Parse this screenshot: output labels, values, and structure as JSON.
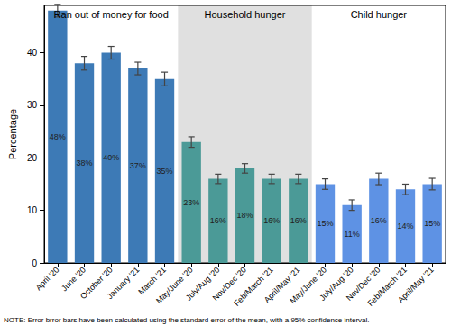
{
  "chart_data": {
    "type": "bar",
    "y_label": "Percentage",
    "categories": [
      "April '20",
      "June '20",
      "October '20",
      "January '21",
      "March '21",
      "May/June '20",
      "July/Aug '20",
      "Nov/Dec '20",
      "Feb/March '21",
      "April/May '21",
      "May/June '20",
      "July/Aug '20",
      "Nov/Dec '20",
      "Feb/March '21",
      "April/May '21"
    ],
    "series": [
      {
        "name": "Ran out of money for food",
        "color": "#3d7ab6",
        "values": [
          48,
          38,
          40,
          37,
          35,
          null,
          null,
          null,
          null,
          null,
          null,
          null,
          null,
          null,
          null
        ],
        "value_labels": [
          "48%",
          "38%",
          "40%",
          "37%",
          "35%",
          null,
          null,
          null,
          null,
          null,
          null,
          null,
          null,
          null,
          null
        ],
        "errors": [
          1.2,
          1.3,
          1.2,
          1.2,
          1.3,
          null,
          null,
          null,
          null,
          null,
          null,
          null,
          null,
          null,
          null
        ]
      },
      {
        "name": "Household hunger",
        "color": "#4b9a97",
        "values": [
          null,
          null,
          null,
          null,
          null,
          23,
          16,
          18,
          16,
          16,
          null,
          null,
          null,
          null,
          null
        ],
        "value_labels": [
          null,
          null,
          null,
          null,
          null,
          "23%",
          "16%",
          "18%",
          "16%",
          "16%",
          null,
          null,
          null,
          null,
          null
        ],
        "errors": [
          null,
          null,
          null,
          null,
          null,
          1.0,
          0.9,
          0.9,
          0.9,
          0.9,
          null,
          null,
          null,
          null,
          null
        ]
      },
      {
        "name": "Child hunger",
        "color": "#5e92e4",
        "values": [
          null,
          null,
          null,
          null,
          null,
          null,
          null,
          null,
          null,
          null,
          15,
          11,
          16,
          14,
          15
        ],
        "value_labels": [
          null,
          null,
          null,
          null,
          null,
          null,
          null,
          null,
          null,
          null,
          "15%",
          "11%",
          "16%",
          "14%",
          "15%"
        ],
        "errors": [
          null,
          null,
          null,
          null,
          null,
          null,
          null,
          null,
          null,
          null,
          1.0,
          1.0,
          1.1,
          1.0,
          1.1
        ]
      }
    ],
    "ylim": [
      0,
      49
    ],
    "yticks": [
      0,
      10,
      20,
      30,
      40
    ],
    "grid": false,
    "data_labels": true,
    "note": "NOTE: Error brror bars have been calculated using the standard error of the mean, with a 95% confidence interval."
  }
}
